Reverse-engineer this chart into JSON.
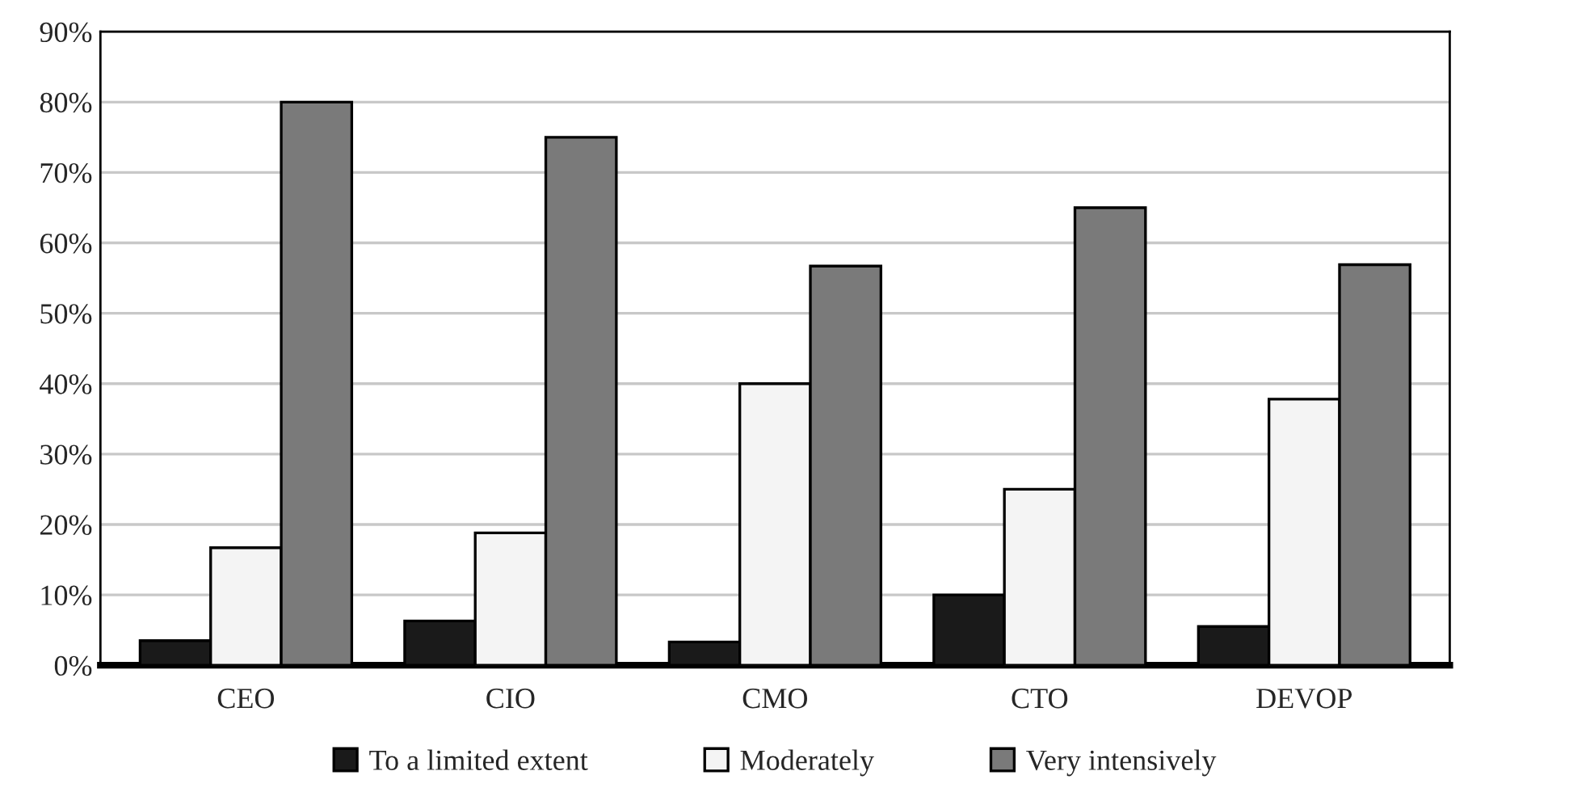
{
  "chart_data": {
    "type": "bar",
    "categories": [
      "CEO",
      "CIO",
      "CMO",
      "CTO",
      "DEVOP"
    ],
    "series": [
      {
        "name": "To a limited extent",
        "color": "#1a1a1a",
        "values": [
          3.5,
          6.3,
          3.3,
          10,
          5.5
        ]
      },
      {
        "name": "Moderately",
        "color": "#f4f4f4",
        "values": [
          16.7,
          18.8,
          40,
          25,
          37.8
        ]
      },
      {
        "name": "Very intensively",
        "color": "#7a7a7a",
        "values": [
          80,
          75,
          56.7,
          65,
          56.9
        ]
      }
    ],
    "ylim": [
      0,
      90
    ],
    "yticks": [
      {
        "value": 0,
        "label": "0%"
      },
      {
        "value": 10,
        "label": "10%"
      },
      {
        "value": 20,
        "label": "20%"
      },
      {
        "value": 30,
        "label": "30%"
      },
      {
        "value": 40,
        "label": "40%"
      },
      {
        "value": 50,
        "label": "50%"
      },
      {
        "value": 60,
        "label": "60%"
      },
      {
        "value": 70,
        "label": "70%"
      },
      {
        "value": 80,
        "label": "80%"
      },
      {
        "value": 90,
        "label": "90%"
      }
    ],
    "grid": "y",
    "legend": "bottom"
  }
}
